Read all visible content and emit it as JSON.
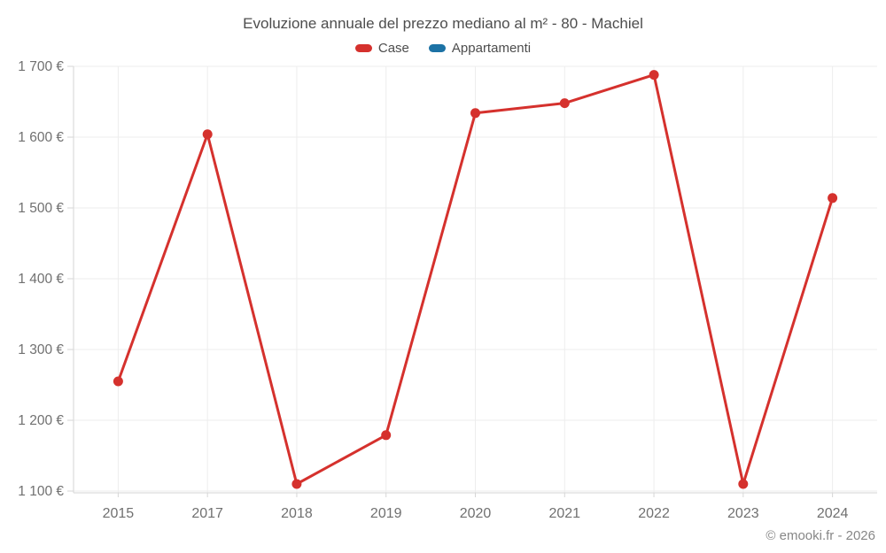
{
  "chart_data": {
    "type": "line",
    "title": "Evoluzione annuale del prezzo mediano al m² - 80 - Machiel",
    "categories": [
      "2015",
      "2017",
      "2018",
      "2019",
      "2020",
      "2021",
      "2022",
      "2023",
      "2024"
    ],
    "series": [
      {
        "name": "Case",
        "color": "#d5312d",
        "values": [
          1255,
          1604,
          1110,
          1179,
          1634,
          1648,
          1688,
          1110,
          1514
        ]
      },
      {
        "name": "Appartamenti",
        "color": "#1c72a5",
        "values": []
      }
    ],
    "xlabel": "",
    "ylabel": "",
    "ylim": [
      1100,
      1700
    ],
    "yticks": [
      1100,
      1200,
      1300,
      1400,
      1500,
      1600,
      1700
    ],
    "ytick_labels": [
      "1 100 €",
      "1 200 €",
      "1 300 €",
      "1 400 €",
      "1 500 €",
      "1 600 €",
      "1 700 €"
    ],
    "grid": true,
    "legend_position": "top",
    "marker": "circle",
    "axis_text_color": "#707070",
    "grid_color": "#ededed",
    "axis_line_color": "#d6d6d6"
  },
  "footer": {
    "credit": "© emooki.fr - 2026"
  }
}
